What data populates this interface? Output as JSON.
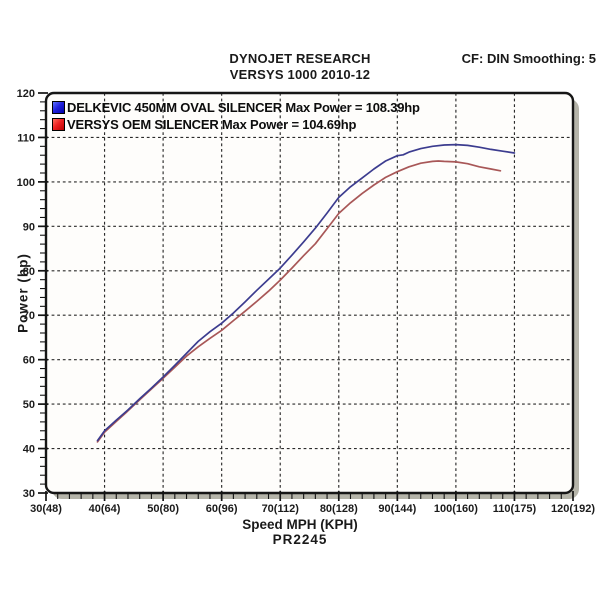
{
  "header": {
    "title_line1": "DYNOJET RESEARCH",
    "title_line2": "VERSYS 1000 2010-12",
    "correction_info": "CF: DIN  Smoothing: 5"
  },
  "chart_data": {
    "type": "line",
    "title": "DYNOJET RESEARCH",
    "subtitle": "VERSYS 1000 2010-12",
    "xlabel": "Speed MPH (KPH)",
    "ylabel": "Power (hp)",
    "footnote": "PR2245",
    "xlim": [
      30,
      120
    ],
    "ylim": [
      30,
      120
    ],
    "minor_tick_step": 2,
    "grid": "dashed lines at major ticks",
    "legend_position": "top-left-inside",
    "x_major_ticks": [
      30,
      40,
      50,
      60,
      70,
      80,
      90,
      100,
      110,
      120
    ],
    "x_tick_labels": [
      "30(48)",
      "40(64)",
      "50(80)",
      "60(96)",
      "70(112)",
      "80(128)",
      "90(144)",
      "100(160)",
      "110(175)",
      "120(192)"
    ],
    "y_major_ticks": [
      30,
      40,
      50,
      60,
      70,
      80,
      90,
      100,
      110,
      120
    ],
    "y_tick_labels": [
      "30",
      "40",
      "50",
      "60",
      "70",
      "80",
      "90",
      "100",
      "110",
      "120"
    ],
    "colors": {
      "grid": "#2b2b2b",
      "frame": "#161616",
      "frame_shadow": "#b5b4a9",
      "text": "#1a1a1a"
    },
    "series": [
      {
        "name": "DELKEVIC 450MM OVAL SILENCER",
        "legend_label": "DELKEVIC 450MM OVAL SILENCER Max Power = 108.39hp",
        "max_power_hp": 108.39,
        "color": "#3c3c8f",
        "swatch_color": "#1a1add",
        "points": [
          [
            38.8,
            41.8
          ],
          [
            40,
            44.0
          ],
          [
            42,
            46.4
          ],
          [
            44,
            48.7
          ],
          [
            46,
            51.2
          ],
          [
            48,
            53.6
          ],
          [
            50,
            56.1
          ],
          [
            52,
            58.7
          ],
          [
            54,
            61.4
          ],
          [
            56,
            64.1
          ],
          [
            58,
            66.3
          ],
          [
            60,
            68.2
          ],
          [
            62,
            70.5
          ],
          [
            64,
            73.0
          ],
          [
            66,
            75.6
          ],
          [
            68,
            78.1
          ],
          [
            70,
            80.6
          ],
          [
            72,
            83.5
          ],
          [
            74,
            86.5
          ],
          [
            76,
            89.6
          ],
          [
            78,
            93.0
          ],
          [
            80,
            96.5
          ],
          [
            82,
            98.9
          ],
          [
            84,
            100.9
          ],
          [
            86,
            102.9
          ],
          [
            88,
            104.7
          ],
          [
            90,
            105.9
          ],
          [
            91,
            106.1
          ],
          [
            92,
            106.7
          ],
          [
            94,
            107.5
          ],
          [
            96,
            108.0
          ],
          [
            98,
            108.3
          ],
          [
            100,
            108.4
          ],
          [
            102,
            108.2
          ],
          [
            104,
            107.8
          ],
          [
            106,
            107.3
          ],
          [
            108,
            106.9
          ],
          [
            110,
            106.5
          ]
        ]
      },
      {
        "name": "VERSYS OEM SILENCER",
        "legend_label": "VERSYS OEM SILENCER Max Power = 104.69hp",
        "max_power_hp": 104.69,
        "color": "#a85757",
        "swatch_color": "#dd1a1a",
        "points": [
          [
            38.8,
            41.5
          ],
          [
            40,
            43.7
          ],
          [
            42,
            46.1
          ],
          [
            44,
            48.5
          ],
          [
            46,
            51.0
          ],
          [
            48,
            53.4
          ],
          [
            50,
            55.8
          ],
          [
            52,
            58.3
          ],
          [
            54,
            60.8
          ],
          [
            56,
            62.9
          ],
          [
            58,
            64.8
          ],
          [
            60,
            66.6
          ],
          [
            62,
            68.8
          ],
          [
            64,
            70.9
          ],
          [
            66,
            73.1
          ],
          [
            68,
            75.4
          ],
          [
            70,
            77.9
          ],
          [
            72,
            80.6
          ],
          [
            74,
            83.4
          ],
          [
            76,
            86.1
          ],
          [
            78,
            89.5
          ],
          [
            80,
            92.9
          ],
          [
            82,
            95.3
          ],
          [
            84,
            97.4
          ],
          [
            86,
            99.3
          ],
          [
            88,
            101.0
          ],
          [
            90,
            102.3
          ],
          [
            92,
            103.4
          ],
          [
            94,
            104.2
          ],
          [
            96,
            104.6
          ],
          [
            97,
            104.7
          ],
          [
            98,
            104.6
          ],
          [
            100,
            104.5
          ],
          [
            102,
            104.1
          ],
          [
            104,
            103.4
          ],
          [
            106,
            102.9
          ],
          [
            107.6,
            102.5
          ]
        ]
      }
    ]
  }
}
